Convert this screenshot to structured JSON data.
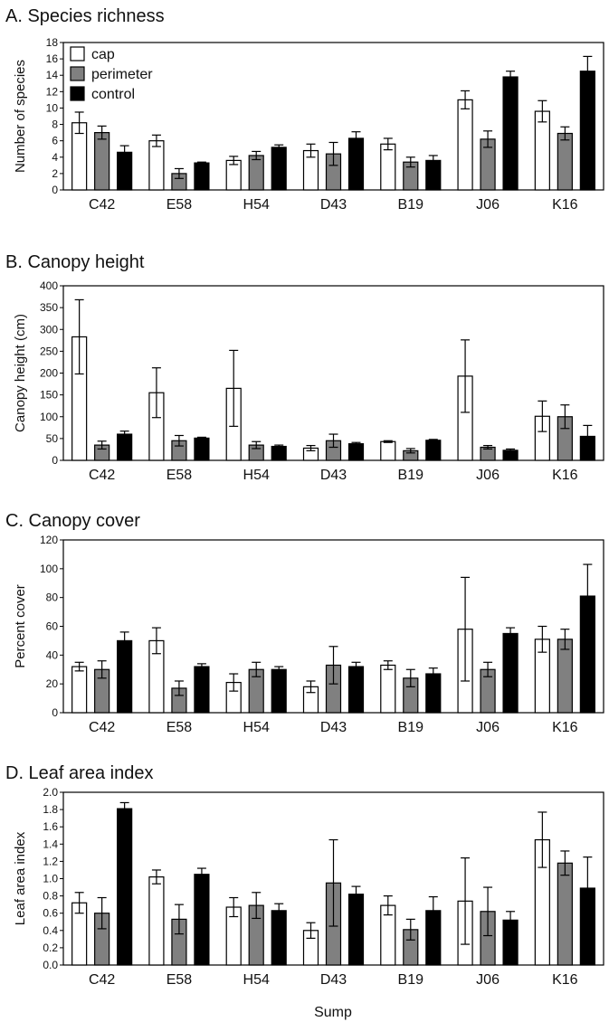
{
  "figure": {
    "xlabel": "Sump"
  },
  "colors": {
    "cap": "#ffffff",
    "perimeter": "#808080",
    "control": "#000000"
  },
  "chart_data": [
    {
      "type": "bar",
      "title": "A. Species richness",
      "ylabel": "Number of species",
      "ylim": [
        0,
        18
      ],
      "ytick_step": 2,
      "ytick_decimals": 0,
      "legend": "top-left",
      "categories": [
        "C42",
        "E58",
        "H54",
        "D43",
        "B19",
        "J06",
        "K16"
      ],
      "series": [
        {
          "name": "cap",
          "values": [
            8.2,
            6.0,
            3.6,
            4.8,
            5.6,
            11.0,
            9.6
          ],
          "errors": [
            1.3,
            0.7,
            0.5,
            0.8,
            0.7,
            1.1,
            1.3
          ]
        },
        {
          "name": "perimeter",
          "values": [
            7.0,
            2.0,
            4.2,
            4.4,
            3.4,
            6.2,
            6.9
          ],
          "errors": [
            0.8,
            0.6,
            0.5,
            1.4,
            0.6,
            1.0,
            0.8
          ]
        },
        {
          "name": "control",
          "values": [
            4.6,
            3.3,
            5.2,
            6.3,
            3.6,
            13.8,
            14.5
          ],
          "errors": [
            0.8,
            0.1,
            0.3,
            0.8,
            0.6,
            0.7,
            1.8
          ]
        }
      ]
    },
    {
      "type": "bar",
      "title": "B. Canopy height",
      "ylabel": "Canopy height (cm)",
      "ylim": [
        0,
        400
      ],
      "ytick_step": 50,
      "ytick_decimals": 0,
      "categories": [
        "C42",
        "E58",
        "H54",
        "D43",
        "B19",
        "J06",
        "K16"
      ],
      "series": [
        {
          "name": "cap",
          "values": [
            283,
            155,
            165,
            28,
            43,
            193,
            101
          ],
          "errors": [
            85,
            57,
            87,
            6,
            2,
            83,
            35
          ]
        },
        {
          "name": "perimeter",
          "values": [
            35,
            45,
            35,
            45,
            22,
            30,
            100
          ],
          "errors": [
            9,
            12,
            8,
            15,
            5,
            4,
            27
          ]
        },
        {
          "name": "control",
          "values": [
            60,
            51,
            32,
            38,
            46,
            23,
            55
          ],
          "errors": [
            7,
            2,
            3,
            3,
            2,
            3,
            25
          ]
        }
      ]
    },
    {
      "type": "bar",
      "title": "C. Canopy cover",
      "ylabel": "Percent cover",
      "ylim": [
        0,
        120
      ],
      "ytick_step": 20,
      "ytick_decimals": 0,
      "categories": [
        "C42",
        "E58",
        "H54",
        "D43",
        "B19",
        "J06",
        "K16"
      ],
      "series": [
        {
          "name": "cap",
          "values": [
            32,
            50,
            21,
            18,
            33,
            58,
            51
          ],
          "errors": [
            3,
            9,
            6,
            4,
            3,
            36,
            9
          ]
        },
        {
          "name": "perimeter",
          "values": [
            30,
            17,
            30,
            33,
            24,
            30,
            51
          ],
          "errors": [
            6,
            5,
            5,
            13,
            6,
            5,
            7
          ]
        },
        {
          "name": "control",
          "values": [
            50,
            32,
            30,
            32,
            27,
            55,
            81
          ],
          "errors": [
            6,
            2,
            2,
            3,
            4,
            4,
            22
          ]
        }
      ]
    },
    {
      "type": "bar",
      "title": "D. Leaf area index",
      "ylabel": "Leaf area index",
      "ylim": [
        0,
        2.0
      ],
      "ytick_step": 0.2,
      "ytick_decimals": 1,
      "categories": [
        "C42",
        "E58",
        "H54",
        "D43",
        "B19",
        "J06",
        "K16"
      ],
      "series": [
        {
          "name": "cap",
          "values": [
            0.72,
            1.02,
            0.67,
            0.4,
            0.69,
            0.74,
            1.45
          ],
          "errors": [
            0.12,
            0.08,
            0.11,
            0.09,
            0.11,
            0.5,
            0.32
          ]
        },
        {
          "name": "perimeter",
          "values": [
            0.6,
            0.53,
            0.69,
            0.95,
            0.41,
            0.62,
            1.18
          ],
          "errors": [
            0.18,
            0.17,
            0.15,
            0.5,
            0.12,
            0.28,
            0.14
          ]
        },
        {
          "name": "control",
          "values": [
            1.81,
            1.05,
            0.63,
            0.82,
            0.63,
            0.52,
            0.89
          ],
          "errors": [
            0.07,
            0.07,
            0.08,
            0.09,
            0.16,
            0.1,
            0.36
          ]
        }
      ]
    }
  ]
}
